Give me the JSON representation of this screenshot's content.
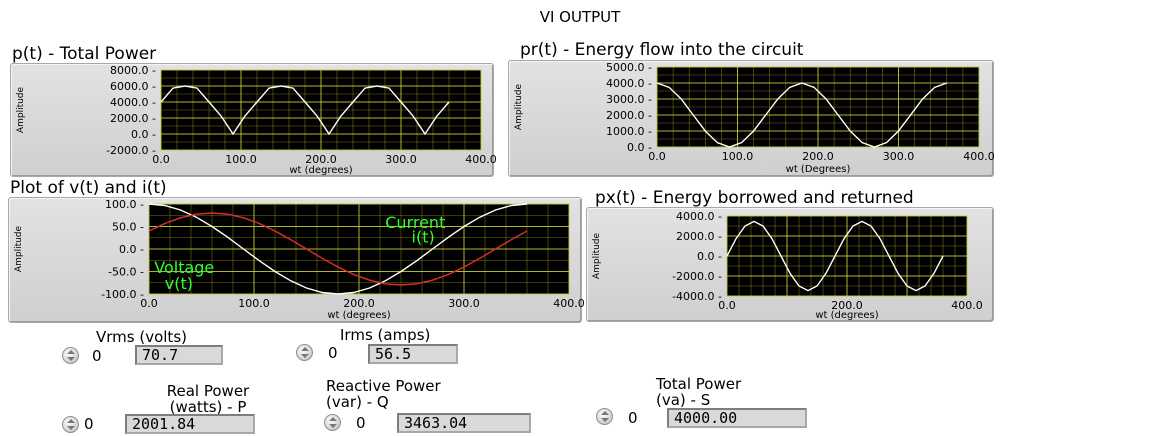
{
  "page_title": "VI OUTPUT",
  "colors": {
    "plot_bg": "#000000",
    "grid": "#c8c832",
    "trace": "#ffffff",
    "current_trace": "#e0302a",
    "annotation": "#33ff33"
  },
  "chart_data": [
    {
      "id": "pt",
      "type": "line",
      "title": "p(t) - Total Power",
      "xlabel": "wt (degrees)",
      "ylabel": "Amplitude",
      "xlim": [
        0,
        400
      ],
      "ylim": [
        -2000,
        8000
      ],
      "x_ticks": [
        "0.0",
        "100.0",
        "200.0",
        "300.0",
        "400.0"
      ],
      "y_ticks": [
        "8000.0",
        "6000.0",
        "4000.0",
        "2000.0",
        "0.0",
        "-2000.0"
      ],
      "grid": true,
      "series": [
        {
          "x": [
            0,
            15,
            30,
            45,
            60,
            75,
            90,
            105,
            120,
            135,
            150,
            165,
            180,
            195,
            210,
            225,
            240,
            255,
            270,
            285,
            300,
            315,
            330,
            345,
            360
          ],
          "values": [
            4001,
            5732,
            6000,
            5733,
            4001,
            2268,
            2,
            2268,
            4001,
            5732,
            6000,
            5733,
            4001,
            2268,
            2,
            2268,
            4001,
            5732,
            6000,
            5733,
            4001,
            2268,
            2,
            2268,
            4001
          ]
        }
      ]
    },
    {
      "id": "pr",
      "type": "line",
      "title": "pr(t) - Energy flow into the circuit",
      "xlabel": "wt (Degrees)",
      "ylabel": "Amplitude",
      "xlim": [
        0,
        400
      ],
      "ylim": [
        0,
        5000
      ],
      "x_ticks": [
        "0.0",
        "100.0",
        "200.0",
        "300.0",
        "400.0"
      ],
      "y_ticks": [
        "5000.0",
        "4000.0",
        "3000.0",
        "2000.0",
        "1000.0",
        "0.0"
      ],
      "grid": true,
      "series": [
        {
          "x": [
            0,
            15,
            30,
            45,
            60,
            75,
            90,
            105,
            120,
            135,
            150,
            165,
            180,
            195,
            210,
            225,
            240,
            255,
            270,
            285,
            300,
            315,
            330,
            345,
            360
          ],
          "values": [
            4000,
            3732,
            3000,
            2000,
            1000,
            268,
            0,
            268,
            1000,
            2000,
            3000,
            3732,
            4000,
            3732,
            3000,
            2000,
            1000,
            268,
            0,
            268,
            1000,
            2000,
            3000,
            3732,
            4000
          ]
        }
      ]
    },
    {
      "id": "vi",
      "type": "line",
      "title": "Plot of v(t) and i(t)",
      "xlabel": "wt (degrees)",
      "ylabel": "Amplitude",
      "xlim": [
        0,
        400
      ],
      "ylim": [
        -100,
        100
      ],
      "x_ticks": [
        "0.0",
        "100.0",
        "200.0",
        "300.0",
        "400.0"
      ],
      "y_ticks": [
        "100.0",
        "50.0",
        "0.0",
        "-50.0",
        "-100.0"
      ],
      "grid": true,
      "annotations": [
        {
          "text": "Current",
          "at": [
            225,
            60
          ]
        },
        {
          "text": "i(t)",
          "at": [
            250,
            28
          ]
        },
        {
          "text": "Voltage",
          "at": [
            5,
            -40
          ]
        },
        {
          "text": "v(t)",
          "at": [
            15,
            -75
          ]
        }
      ],
      "series": [
        {
          "color": "#ffffff",
          "x": [
            0,
            15,
            30,
            45,
            60,
            75,
            90,
            105,
            120,
            135,
            150,
            165,
            180,
            195,
            210,
            225,
            240,
            255,
            270,
            285,
            300,
            315,
            330,
            345,
            360
          ],
          "values": [
            100,
            96.6,
            86.6,
            70.7,
            50,
            25.9,
            0,
            -25.9,
            -50,
            -70.7,
            -86.6,
            -96.6,
            -100,
            -96.6,
            -86.6,
            -70.7,
            -50,
            -25.9,
            0,
            25.9,
            50,
            70.7,
            86.6,
            96.6,
            100
          ]
        },
        {
          "color": "#e0302a",
          "x": [
            0,
            15,
            30,
            45,
            60,
            75,
            90,
            105,
            120,
            135,
            150,
            165,
            180,
            195,
            210,
            225,
            240,
            255,
            270,
            285,
            300,
            315,
            330,
            345,
            360
          ],
          "values": [
            40,
            56.6,
            69.3,
            77.3,
            80,
            77.3,
            69.3,
            56.6,
            40,
            20.7,
            0,
            -20.7,
            -40,
            -56.6,
            -69.3,
            -77.3,
            -80,
            -77.3,
            -69.3,
            -56.6,
            -40,
            -20.7,
            0,
            20.7,
            40
          ]
        }
      ]
    },
    {
      "id": "px",
      "type": "line",
      "title": "px(t) - Energy borrowed and returned",
      "xlabel": "wt (degrees)",
      "ylabel": "Amplitude",
      "xlim": [
        0,
        400
      ],
      "ylim": [
        -4000,
        4000
      ],
      "x_ticks": [
        "0.0",
        "200.0",
        "400.0"
      ],
      "y_ticks": [
        "4000.0",
        "2000.0",
        "0.0",
        "-2000.0",
        "-4000.0"
      ],
      "grid": true,
      "series": [
        {
          "x": [
            0,
            15,
            30,
            45,
            60,
            75,
            90,
            105,
            120,
            135,
            150,
            165,
            180,
            195,
            210,
            225,
            240,
            255,
            270,
            285,
            300,
            315,
            330,
            345,
            360
          ],
          "values": [
            0,
            1732,
            3000,
            3464,
            3000,
            1732,
            0,
            -1732,
            -3000,
            -3464,
            -3000,
            -1732,
            0,
            1732,
            3000,
            3464,
            3000,
            1732,
            0,
            -1732,
            -3000,
            -3464,
            -3000,
            -1732,
            0
          ]
        }
      ]
    }
  ],
  "indicators": {
    "vrms": {
      "label": "Vrms (volts)",
      "spin": "0",
      "value": "70.7"
    },
    "irms": {
      "label": "Irms (amps)",
      "spin": "0",
      "value": "56.5"
    },
    "real_power": {
      "label_line1": "Real Power",
      "label_line2": "(watts) - P",
      "spin": "0",
      "value": "2001.84"
    },
    "reactive_power": {
      "label_line1": "Reactive Power",
      "label_line2": "(var) - Q",
      "spin": "0",
      "value": "3463.04"
    },
    "total_power": {
      "label_line1": "Total Power",
      "label_line2": "(va) - S",
      "spin": "0",
      "value": "4000.00"
    }
  }
}
